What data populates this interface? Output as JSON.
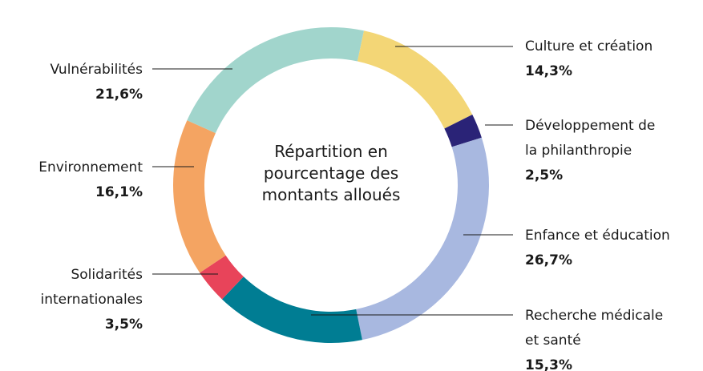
{
  "chart_data": {
    "type": "donut",
    "title": "Répartition en pourcentage des montants alloués",
    "categories": [
      "Culture et création",
      "Développement de la philanthropie",
      "Enfance et éducation",
      "Recherche médicale et santé",
      "Solidarités internationales",
      "Environnement",
      "Vulnérabilités"
    ],
    "values": [
      14.3,
      2.5,
      26.7,
      15.3,
      3.5,
      16.1,
      21.6
    ],
    "value_labels": [
      "14,3%",
      "2,5%",
      "26,7%",
      "15,3%",
      "3,5%",
      "16,1%",
      "21,6%"
    ],
    "colors": [
      "#f3d676",
      "#2a2377",
      "#a8b8e0",
      "#007d93",
      "#e8445a",
      "#f4a462",
      "#a1d5cc"
    ]
  }
}
